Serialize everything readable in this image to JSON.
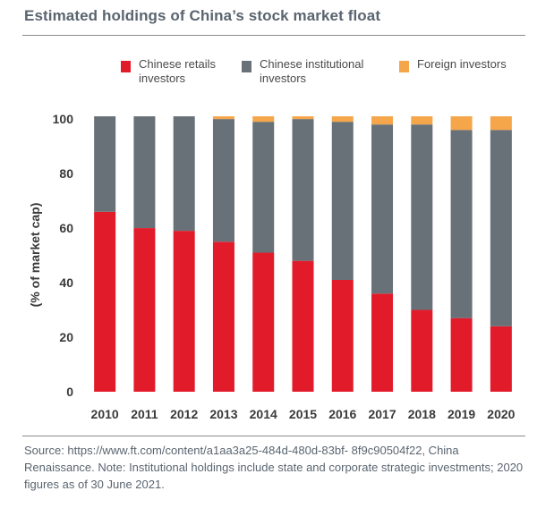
{
  "chart_data": {
    "type": "bar",
    "stacked": true,
    "title": "Estimated holdings of China’s stock market float",
    "xlabel": "",
    "ylabel": "(% of market cap)",
    "ylim": [
      0,
      102
    ],
    "yticks": [
      0,
      20,
      40,
      60,
      80,
      100
    ],
    "categories": [
      "2010",
      "2011",
      "2012",
      "2013",
      "2014",
      "2015",
      "2016",
      "2017",
      "2018",
      "2019",
      "2020"
    ],
    "series": [
      {
        "name": "Chinese retails\ninvestors",
        "color": "#e21b2b",
        "values": [
          66,
          60,
          59,
          55,
          51,
          48,
          41,
          36,
          30,
          27,
          24
        ]
      },
      {
        "name": "Chinese institutional\ninvestors",
        "color": "#687178",
        "values": [
          35,
          41,
          42,
          45,
          48,
          52,
          58,
          62,
          68,
          69,
          72
        ]
      },
      {
        "name": "Foreign investors",
        "color": "#f5a54a",
        "values": [
          0,
          0,
          0,
          1,
          2,
          1,
          2,
          3,
          3,
          5,
          5
        ]
      }
    ],
    "legend_position": "top"
  },
  "source": "Source: https://www.ft.com/content/a1aa3a25-484d-480d-83bf- 8f9c90504f22, China Renaissance. Note: Institutional holdings include state and corporate strategic investments; 2020 figures as of 30 June 2021."
}
